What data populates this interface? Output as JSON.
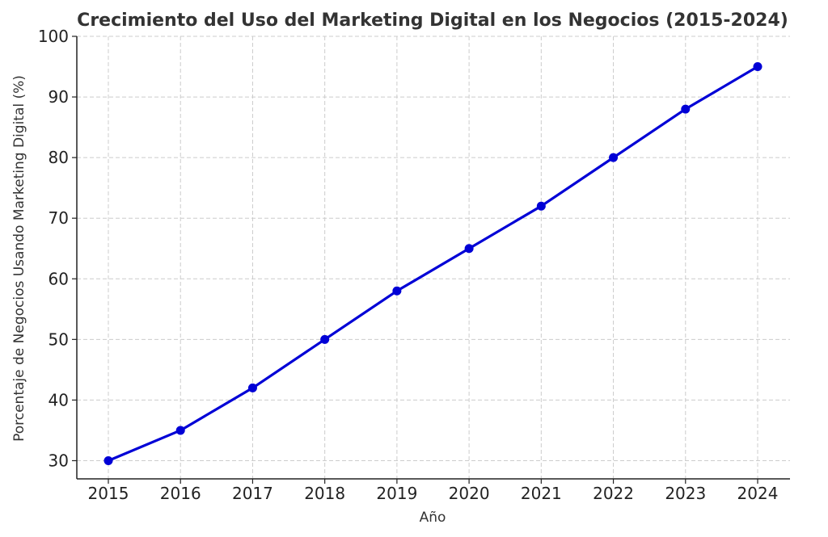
{
  "chart_data": {
    "type": "line",
    "title": "Crecimiento del Uso del Marketing Digital en los Negocios (2015-2024)",
    "xlabel": "Año",
    "ylabel": "Porcentaje de Negocios Usando Marketing Digital (%)",
    "x": [
      "2015",
      "2016",
      "2017",
      "2018",
      "2019",
      "2020",
      "2021",
      "2022",
      "2023",
      "2024"
    ],
    "series": [
      {
        "name": "Porcentaje de negocios",
        "values": [
          30,
          35,
          42,
          50,
          58,
          65,
          72,
          80,
          88,
          95
        ],
        "color": "#0000d6"
      }
    ],
    "yticks": [
      "30",
      "40",
      "50",
      "60",
      "70",
      "80",
      "90",
      "100"
    ],
    "ylim": [
      27,
      100
    ],
    "grid": true
  }
}
